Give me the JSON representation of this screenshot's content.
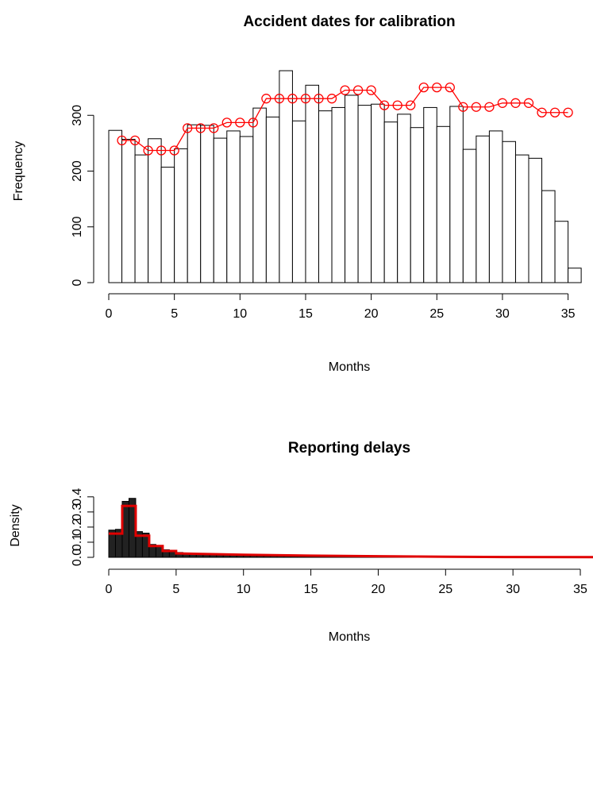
{
  "chart_data": [
    {
      "type": "histogram",
      "title": "Accident dates for calibration",
      "x_label": "Months",
      "y_label": "Frequency",
      "bins": [
        0,
        1,
        2,
        3,
        4,
        5,
        6,
        7,
        8,
        9,
        10,
        11,
        12,
        13,
        14,
        15,
        16,
        17,
        18,
        19,
        20,
        21,
        22,
        23,
        24,
        25,
        26,
        27,
        28,
        29,
        30,
        31,
        32,
        33,
        34,
        35,
        36
      ],
      "values": [
        273,
        257,
        229,
        258,
        207,
        240,
        283,
        282,
        259,
        272,
        262,
        313,
        297,
        380,
        290,
        354,
        308,
        314,
        336,
        318,
        320,
        288,
        302,
        278,
        314,
        280,
        316,
        239,
        263,
        272,
        253,
        229,
        223,
        165,
        110,
        26
      ],
      "color": "#ffffff",
      "edgecolor": "#000000",
      "lines": [
        {
          "x": [
            1,
            2,
            3,
            4,
            5,
            6,
            7,
            8,
            9,
            10,
            11,
            12,
            13,
            14,
            15,
            16,
            17,
            18,
            19,
            20,
            21,
            22,
            23,
            24,
            25,
            26,
            27,
            28,
            29,
            30,
            31,
            32,
            33,
            34,
            35
          ],
          "values": [
            255,
            255,
            237,
            237,
            237,
            277,
            277,
            277,
            287,
            287,
            287,
            330,
            330,
            330,
            330,
            330,
            330,
            345,
            345,
            345,
            318,
            318,
            318,
            350,
            350,
            350,
            315,
            315,
            315,
            322,
            322,
            322,
            305,
            305,
            305
          ],
          "color": "#ff0000",
          "markers": true
        }
      ],
      "xlim": [
        0,
        36.9
      ],
      "ylim": [
        0,
        400
      ],
      "xticks": [
        0,
        5,
        10,
        15,
        20,
        25,
        30,
        35
      ],
      "yticks": [
        0,
        100,
        200,
        300
      ]
    },
    {
      "type": "histogram",
      "title": "Reporting delays",
      "x_label": "Months",
      "y_label": "Density",
      "bins": [
        0,
        0.5,
        1,
        1.5,
        2,
        2.5,
        3,
        3.5,
        4,
        4.5,
        5,
        5.5,
        6,
        6.5,
        7,
        7.5,
        8,
        8.5,
        9,
        9.5,
        10,
        10.5,
        11,
        11.5,
        12,
        12.5,
        13,
        13.5,
        14,
        14.5,
        15,
        15.5,
        16,
        16.5,
        17,
        17.5,
        18,
        18.5,
        19,
        19.5,
        20,
        20.5,
        21,
        21.5,
        22,
        22.5,
        23,
        23.5,
        24,
        24.5,
        25,
        25.5,
        26,
        26.5,
        27,
        27.5,
        28,
        28.5,
        29,
        29.5,
        30,
        30.5,
        31,
        31.5,
        32,
        32.5,
        33,
        33.5,
        34,
        34.5,
        35,
        35.5,
        36
      ],
      "values": [
        0.18,
        0.185,
        0.37,
        0.39,
        0.17,
        0.16,
        0.085,
        0.075,
        0.05,
        0.042,
        0.032,
        0.028,
        0.026,
        0.024,
        0.022,
        0.02,
        0.019,
        0.018,
        0.018,
        0.017,
        0.015,
        0.014,
        0.013,
        0.012,
        0.011,
        0.011,
        0.01,
        0.009,
        0.009,
        0.008,
        0.007,
        0.007,
        0.006,
        0.006,
        0.005,
        0.005,
        0.005,
        0.004,
        0.004,
        0.004,
        0.003,
        0.003,
        0.003,
        0.003,
        0.002,
        0.002,
        0.002,
        0.002,
        0.002,
        0.002,
        0.001,
        0.001,
        0.001,
        0.001,
        0.001,
        0.001,
        0.001,
        0.001,
        0.001,
        0.001,
        0.001,
        0.001,
        0.001,
        0.001,
        0.001,
        0.001,
        0.001,
        0.001,
        0.001,
        0.001,
        0.001,
        0.001
      ],
      "color": "#222222",
      "edgecolor": "#000000",
      "lines": [
        {
          "x": [
            0,
            1,
            1,
            2,
            2,
            3,
            3,
            4,
            4,
            5,
            5,
            7,
            10,
            15,
            20,
            25,
            30,
            36
          ],
          "values": [
            0.157,
            0.157,
            0.34,
            0.34,
            0.143,
            0.143,
            0.075,
            0.075,
            0.042,
            0.042,
            0.026,
            0.022,
            0.017,
            0.011,
            0.007,
            0.004,
            0.002,
            0.001
          ],
          "color": "#e00000",
          "markers": false
        }
      ],
      "xlim": [
        0,
        36
      ],
      "ylim": [
        0,
        0.42
      ],
      "xticks": [
        0,
        5,
        10,
        15,
        20,
        25,
        30,
        35
      ],
      "yticks": [
        {
          "value": 0,
          "label": "0.0"
        },
        0.1,
        0.2,
        0.3,
        0.4
      ]
    }
  ]
}
